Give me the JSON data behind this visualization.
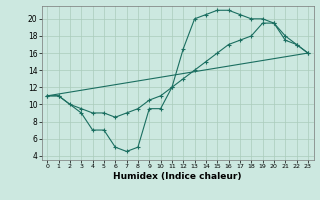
{
  "xlabel": "Humidex (Indice chaleur)",
  "bg_color": "#cce8e0",
  "grid_color": "#aaccbb",
  "line_color": "#1a6e60",
  "xlim": [
    -0.5,
    23.5
  ],
  "ylim": [
    3.5,
    21.5
  ],
  "xticks": [
    0,
    1,
    2,
    3,
    4,
    5,
    6,
    7,
    8,
    9,
    10,
    11,
    12,
    13,
    14,
    15,
    16,
    17,
    18,
    19,
    20,
    21,
    22,
    23
  ],
  "yticks": [
    4,
    6,
    8,
    10,
    12,
    14,
    16,
    18,
    20
  ],
  "line1_x": [
    0,
    1,
    3,
    4,
    5,
    6,
    7,
    8,
    9,
    10,
    11,
    12,
    13,
    14,
    15,
    16,
    17,
    18,
    19,
    20,
    21,
    22,
    23
  ],
  "line1_y": [
    11,
    11,
    9,
    7,
    7,
    5,
    4.5,
    5,
    9.5,
    9.5,
    12,
    16.5,
    20,
    20.5,
    21,
    21,
    20.5,
    20,
    20,
    19.5,
    17.5,
    17,
    16
  ],
  "line2_x": [
    0,
    1,
    2,
    3,
    4,
    5,
    6,
    7,
    8,
    9,
    10,
    11,
    12,
    13,
    14,
    15,
    16,
    17,
    18,
    19,
    20,
    21,
    22,
    23
  ],
  "line2_y": [
    11,
    11,
    10,
    9.5,
    9,
    9,
    8.5,
    9,
    9.5,
    10.5,
    11,
    12,
    13,
    14,
    15,
    16,
    17,
    17.5,
    18,
    19.5,
    19.5,
    18,
    17,
    16
  ],
  "line3_x": [
    0,
    23
  ],
  "line3_y": [
    11,
    16
  ]
}
